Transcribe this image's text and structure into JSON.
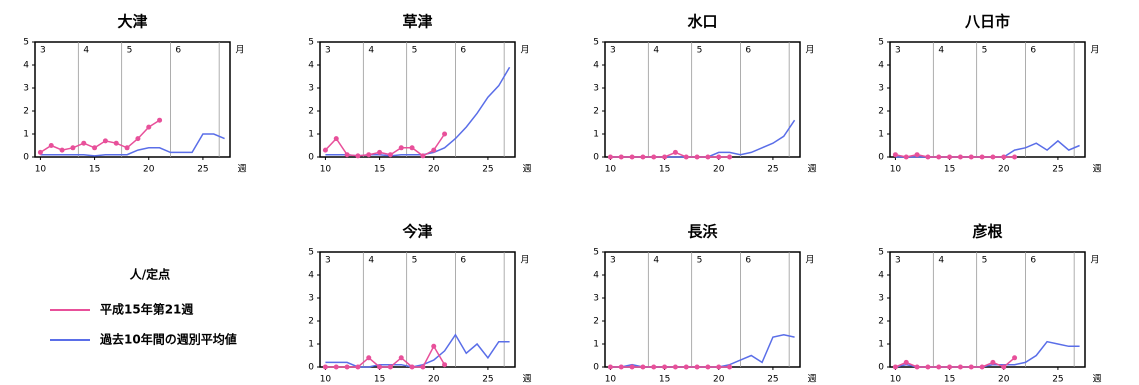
{
  "legend": {
    "title": "人/定点",
    "items": [
      {
        "name": "平成15年第21週",
        "color": "#e8509a"
      },
      {
        "name": "過去10年間の週別平均値",
        "color": "#5a6ee8"
      }
    ]
  },
  "chart_data": [
    {
      "type": "line",
      "title": "大津",
      "x": [
        10,
        11,
        12,
        13,
        14,
        15,
        16,
        17,
        18,
        19,
        20,
        21,
        22,
        23,
        24,
        25,
        26,
        27
      ],
      "xlim": [
        9.5,
        27.5
      ],
      "xticks": [
        10,
        15,
        20,
        25
      ],
      "ylim": [
        0,
        5
      ],
      "yticks": [
        0,
        1,
        2,
        3,
        4,
        5
      ],
      "month_lines": [
        13.5,
        17.5,
        22,
        26.5
      ],
      "month_labels": [
        "3",
        "4",
        "5",
        "6"
      ],
      "x_unit": "週",
      "month_unit": "月",
      "series": [
        {
          "values": [
            0.2,
            0.5,
            0.3,
            0.4,
            0.6,
            0.4,
            0.7,
            0.6,
            0.4,
            0.8,
            1.3,
            1.6,
            null,
            null,
            null,
            null,
            null,
            null
          ]
        },
        {
          "values": [
            0.1,
            0.1,
            0.1,
            0.1,
            0.1,
            0.05,
            0.1,
            0.1,
            0.1,
            0.3,
            0.4,
            0.4,
            0.2,
            0.2,
            0.2,
            1.0,
            1.0,
            0.8
          ]
        }
      ]
    },
    {
      "type": "line",
      "title": "草津",
      "x": [
        10,
        11,
        12,
        13,
        14,
        15,
        16,
        17,
        18,
        19,
        20,
        21,
        22,
        23,
        24,
        25,
        26,
        27
      ],
      "xlim": [
        9.5,
        27.5
      ],
      "xticks": [
        10,
        15,
        20,
        25
      ],
      "ylim": [
        0,
        5
      ],
      "yticks": [
        0,
        1,
        2,
        3,
        4,
        5
      ],
      "month_lines": [
        13.5,
        17.5,
        22,
        26.5
      ],
      "month_labels": [
        "3",
        "4",
        "5",
        "6"
      ],
      "x_unit": "週",
      "month_unit": "月",
      "series": [
        {
          "values": [
            0.3,
            0.8,
            0.1,
            0.05,
            0.1,
            0.2,
            0.1,
            0.4,
            0.4,
            0.05,
            0.3,
            1.0,
            null,
            null,
            null,
            null,
            null,
            null
          ]
        },
        {
          "values": [
            0.1,
            0.1,
            0.1,
            0.05,
            0.1,
            0.1,
            0.05,
            0.1,
            0.1,
            0.1,
            0.2,
            0.4,
            0.8,
            1.3,
            1.9,
            2.6,
            3.1,
            3.9
          ]
        }
      ]
    },
    {
      "type": "line",
      "title": "水口",
      "x": [
        10,
        11,
        12,
        13,
        14,
        15,
        16,
        17,
        18,
        19,
        20,
        21,
        22,
        23,
        24,
        25,
        26,
        27
      ],
      "xlim": [
        9.5,
        27.5
      ],
      "xticks": [
        10,
        15,
        20,
        25
      ],
      "ylim": [
        0,
        5
      ],
      "yticks": [
        0,
        1,
        2,
        3,
        4,
        5
      ],
      "month_lines": [
        13.5,
        17.5,
        22,
        26.5
      ],
      "month_labels": [
        "3",
        "4",
        "5",
        "6"
      ],
      "x_unit": "週",
      "month_unit": "月",
      "series": [
        {
          "values": [
            0,
            0,
            0,
            0,
            0,
            0,
            0.2,
            0,
            0,
            0,
            0,
            0,
            null,
            null,
            null,
            null,
            null,
            null
          ]
        },
        {
          "values": [
            0,
            0,
            0,
            0,
            0,
            0,
            0,
            0,
            0,
            0,
            0.2,
            0.2,
            0.1,
            0.2,
            0.4,
            0.6,
            0.9,
            1.6
          ]
        }
      ]
    },
    {
      "type": "line",
      "title": "八日市",
      "x": [
        10,
        11,
        12,
        13,
        14,
        15,
        16,
        17,
        18,
        19,
        20,
        21,
        22,
        23,
        24,
        25,
        26,
        27
      ],
      "xlim": [
        9.5,
        27.5
      ],
      "xticks": [
        10,
        15,
        20,
        25
      ],
      "ylim": [
        0,
        5
      ],
      "yticks": [
        0,
        1,
        2,
        3,
        4,
        5
      ],
      "month_lines": [
        13.5,
        17.5,
        22,
        26.5
      ],
      "month_labels": [
        "3",
        "4",
        "5",
        "6"
      ],
      "x_unit": "週",
      "month_unit": "月",
      "series": [
        {
          "values": [
            0.1,
            0,
            0.1,
            0,
            0,
            0,
            0,
            0,
            0,
            0,
            0,
            0,
            null,
            null,
            null,
            null,
            null,
            null
          ]
        },
        {
          "values": [
            0,
            0,
            0,
            0,
            0,
            0,
            0,
            0,
            0,
            0,
            0,
            0.3,
            0.4,
            0.6,
            0.3,
            0.7,
            0.3,
            0.5
          ]
        }
      ]
    },
    {
      "type": "line",
      "title": "今津",
      "x": [
        10,
        11,
        12,
        13,
        14,
        15,
        16,
        17,
        18,
        19,
        20,
        21,
        22,
        23,
        24,
        25,
        26,
        27
      ],
      "xlim": [
        9.5,
        27.5
      ],
      "xticks": [
        10,
        15,
        20,
        25
      ],
      "ylim": [
        0,
        5
      ],
      "yticks": [
        0,
        1,
        2,
        3,
        4,
        5
      ],
      "month_lines": [
        13.5,
        17.5,
        22,
        26.5
      ],
      "month_labels": [
        "3",
        "4",
        "5",
        "6"
      ],
      "x_unit": "週",
      "month_unit": "月",
      "series": [
        {
          "values": [
            0,
            0,
            0,
            0,
            0.4,
            0,
            0,
            0.4,
            0,
            0,
            0.9,
            0.1,
            null,
            null,
            null,
            null,
            null,
            null
          ]
        },
        {
          "values": [
            0.2,
            0.2,
            0.2,
            0,
            0,
            0.1,
            0.1,
            0.1,
            0,
            0.1,
            0.3,
            0.7,
            1.4,
            0.6,
            1.0,
            0.4,
            1.1,
            1.1
          ]
        }
      ]
    },
    {
      "type": "line",
      "title": "長浜",
      "x": [
        10,
        11,
        12,
        13,
        14,
        15,
        16,
        17,
        18,
        19,
        20,
        21,
        22,
        23,
        24,
        25,
        26,
        27
      ],
      "xlim": [
        9.5,
        27.5
      ],
      "xticks": [
        10,
        15,
        20,
        25
      ],
      "ylim": [
        0,
        5
      ],
      "yticks": [
        0,
        1,
        2,
        3,
        4,
        5
      ],
      "month_lines": [
        13.5,
        17.5,
        22,
        26.5
      ],
      "month_labels": [
        "3",
        "4",
        "5",
        "6"
      ],
      "x_unit": "週",
      "month_unit": "月",
      "series": [
        {
          "values": [
            0,
            0,
            0,
            0,
            0,
            0,
            0,
            0,
            0,
            0,
            0,
            0,
            null,
            null,
            null,
            null,
            null,
            null
          ]
        },
        {
          "values": [
            0,
            0,
            0.1,
            0,
            0,
            0,
            0,
            0,
            0,
            0,
            0,
            0.1,
            0.3,
            0.5,
            0.2,
            1.3,
            1.4,
            1.3
          ]
        }
      ]
    },
    {
      "type": "line",
      "title": "彦根",
      "x": [
        10,
        11,
        12,
        13,
        14,
        15,
        16,
        17,
        18,
        19,
        20,
        21,
        22,
        23,
        24,
        25,
        26,
        27
      ],
      "xlim": [
        9.5,
        27.5
      ],
      "xticks": [
        10,
        15,
        20,
        25
      ],
      "ylim": [
        0,
        5
      ],
      "yticks": [
        0,
        1,
        2,
        3,
        4,
        5
      ],
      "month_lines": [
        13.5,
        17.5,
        22,
        26.5
      ],
      "month_labels": [
        "3",
        "4",
        "5",
        "6"
      ],
      "x_unit": "週",
      "month_unit": "月",
      "series": [
        {
          "values": [
            0,
            0.2,
            0,
            0,
            0,
            0,
            0,
            0,
            0,
            0.2,
            0,
            0.4,
            null,
            null,
            null,
            null,
            null,
            null
          ]
        },
        {
          "values": [
            0,
            0.1,
            0,
            0,
            0,
            0,
            0,
            0,
            0,
            0.1,
            0.1,
            0.1,
            0.2,
            0.5,
            1.1,
            1.0,
            0.9,
            0.9
          ]
        }
      ]
    }
  ]
}
